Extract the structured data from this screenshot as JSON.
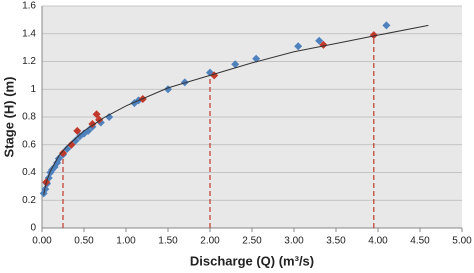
{
  "chart_data": {
    "type": "scatter",
    "xlabel": "Discharge (Q) (m³/s)",
    "ylabel": "Stage (H) (m)",
    "xlim": [
      0,
      5
    ],
    "ylim": [
      0,
      1.6
    ],
    "xticks": [
      {
        "value": 0,
        "label": "0.00"
      },
      {
        "value": 0.5,
        "label": "0.50"
      },
      {
        "value": 1,
        "label": "1.00"
      },
      {
        "value": 1.5,
        "label": "1.50"
      },
      {
        "value": 2,
        "label": "2.00"
      },
      {
        "value": 2.5,
        "label": "2.50"
      },
      {
        "value": 3,
        "label": "3.00"
      },
      {
        "value": 3.5,
        "label": "3.50"
      },
      {
        "value": 4,
        "label": "4.00"
      },
      {
        "value": 4.5,
        "label": "4.50"
      },
      {
        "value": 5,
        "label": "5.00"
      }
    ],
    "yticks": [
      0,
      0.2,
      0.4,
      0.6,
      0.8,
      1,
      1.2,
      1.4,
      1.6
    ],
    "grid": true,
    "series": [
      {
        "color": "#4f81bd",
        "marker": "diamond",
        "x": [
          0.02,
          0.04,
          0.06,
          0.08,
          0.1,
          0.12,
          0.15,
          0.18,
          0.2,
          0.25,
          0.3,
          0.35,
          0.4,
          0.45,
          0.5,
          0.55,
          0.6,
          0.7,
          0.8,
          1.1,
          1.15,
          1.5,
          1.7,
          2.0,
          2.3,
          2.55,
          3.05,
          3.3,
          4.1
        ],
        "values": [
          0.25,
          0.28,
          0.32,
          0.36,
          0.4,
          0.42,
          0.44,
          0.47,
          0.5,
          0.53,
          0.57,
          0.6,
          0.63,
          0.66,
          0.68,
          0.7,
          0.73,
          0.76,
          0.8,
          0.9,
          0.92,
          1.0,
          1.05,
          1.12,
          1.18,
          1.22,
          1.31,
          1.35,
          1.46
        ]
      },
      {
        "color": "#c0392b",
        "marker": "diamond",
        "x": [
          0.05,
          0.25,
          0.35,
          0.42,
          0.6,
          0.65,
          0.68,
          1.2,
          2.05,
          3.35,
          3.95
        ],
        "values": [
          0.33,
          0.54,
          0.6,
          0.7,
          0.75,
          0.82,
          0.78,
          0.93,
          1.1,
          1.32,
          1.39
        ]
      },
      {
        "color": "#333333",
        "marker": "line",
        "x": [
          0.02,
          0.05,
          0.1,
          0.2,
          0.3,
          0.5,
          0.75,
          1,
          1.5,
          2,
          2.5,
          3,
          3.5,
          4,
          4.6
        ],
        "values": [
          0.24,
          0.33,
          0.41,
          0.52,
          0.59,
          0.7,
          0.8,
          0.88,
          1.01,
          1.1,
          1.19,
          1.27,
          1.33,
          1.39,
          1.46
        ]
      }
    ],
    "guides": {
      "color": "#c0392b",
      "x": [
        0.25,
        2.0,
        3.95
      ],
      "values": [
        0.54,
        1.1,
        1.39
      ]
    }
  }
}
